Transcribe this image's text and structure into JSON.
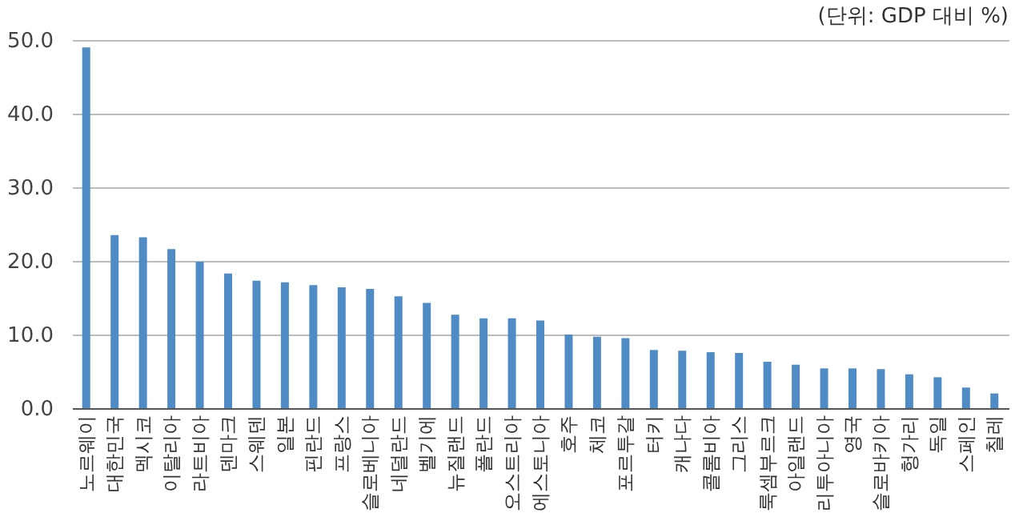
{
  "chart_data": {
    "type": "bar",
    "annotations": [
      "(단위: GDP 대비 %)"
    ],
    "categories": [
      "노르웨이",
      "대한민국",
      "멕시코",
      "이탈리아",
      "라트비아",
      "덴마크",
      "스웨덴",
      "일본",
      "핀란드",
      "프랑스",
      "슬로베니아",
      "네덜란드",
      "벨기에",
      "뉴질랜드",
      "폴란드",
      "오스트리아",
      "에스토니아",
      "호주",
      "체코",
      "포르투갈",
      "터키",
      "캐나다",
      "콜롬비아",
      "그리스",
      "룩셈부르크",
      "아일랜드",
      "리투아니아",
      "영국",
      "슬로바키아",
      "헝가리",
      "독일",
      "스페인",
      "칠레"
    ],
    "values": [
      49.0,
      23.5,
      23.2,
      21.6,
      19.9,
      18.3,
      17.3,
      17.1,
      16.7,
      16.4,
      16.2,
      15.2,
      14.3,
      12.7,
      12.2,
      12.2,
      11.9,
      10.0,
      9.7,
      9.5,
      7.9,
      7.8,
      7.6,
      7.5,
      6.3,
      5.9,
      5.4,
      5.4,
      5.3,
      4.6,
      4.2,
      2.8,
      2.0
    ],
    "color": "#4f8bc4",
    "ylim": [
      0,
      50
    ],
    "yticks": [
      {
        "value": 0,
        "label": "0.0"
      },
      {
        "value": 10,
        "label": "10.0"
      },
      {
        "value": 20,
        "label": "20.0"
      },
      {
        "value": 30,
        "label": "30.0"
      },
      {
        "value": 40,
        "label": "40.0"
      },
      {
        "value": 50,
        "label": "50.0"
      }
    ],
    "grid": "y"
  }
}
